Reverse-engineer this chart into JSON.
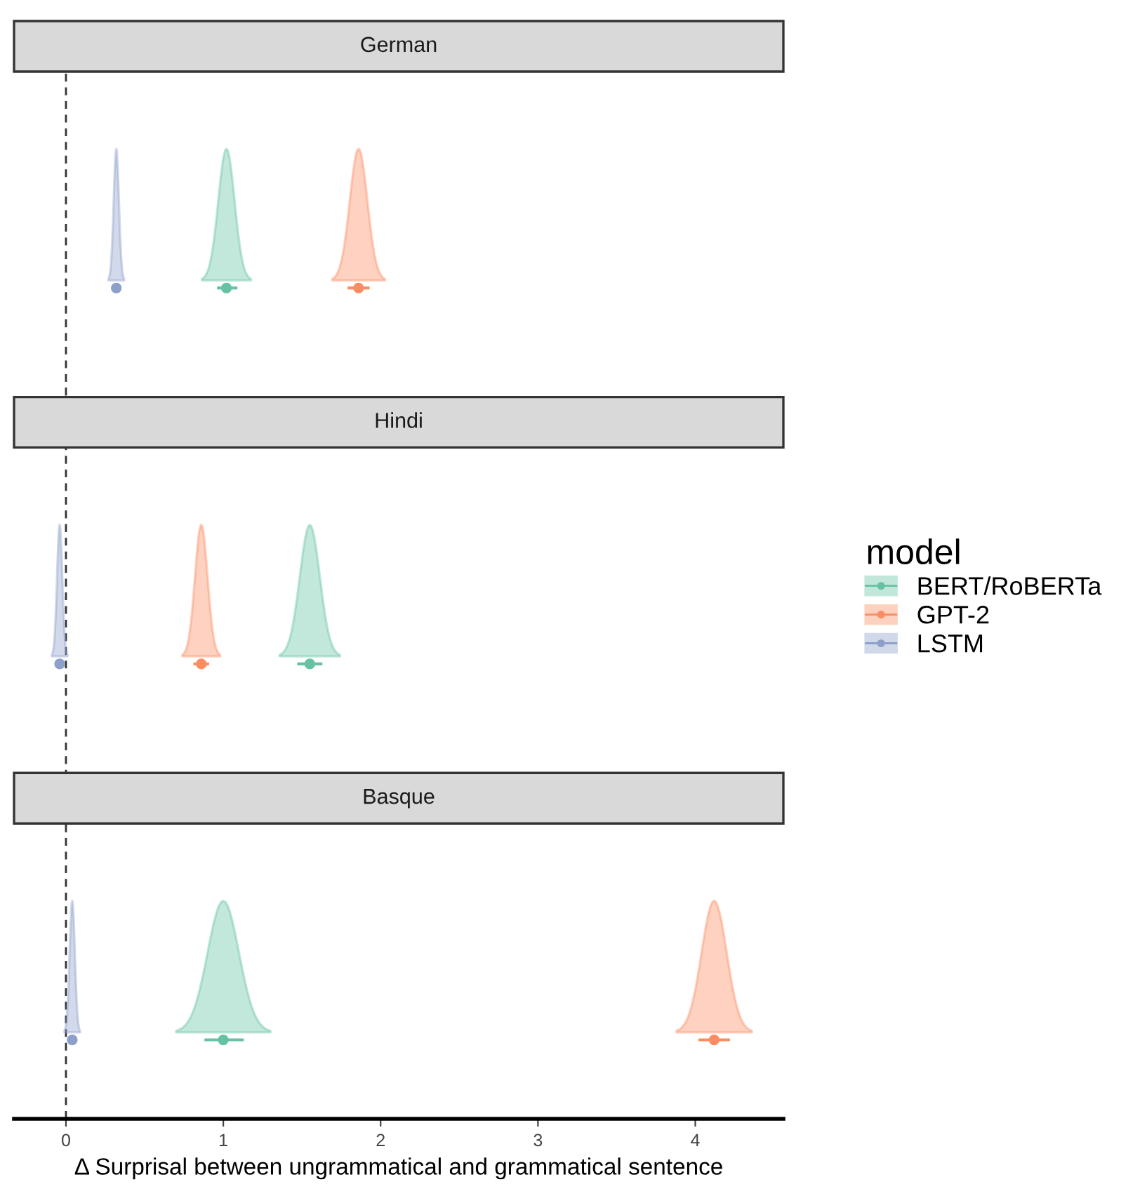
{
  "chart_data": {
    "type": "scatter",
    "orientation": "horizontal",
    "categories": [
      null,
      null,
      null
    ],
    "annotations": [
      "German",
      "Hindi",
      "Basque"
    ],
    "xlabel": "Δ Surprisal between ungrammatical and grammatical sentence",
    "xlim": [
      -0.33,
      4.56
    ],
    "xticks": [
      0,
      1,
      2,
      3,
      4
    ],
    "legend": "right",
    "legend_title": "model",
    "marker": "circle",
    "ref_lines": [
      {
        "axis": "x",
        "value": 0,
        "line_style": "dashed",
        "color": "#333333"
      }
    ],
    "series": [
      {
        "name": "BERT/RoBERTa",
        "color": "#66c2a5",
        "values": [
          1.02,
          1.55,
          1.0
        ],
        "errors": [
          [
            0.96,
            1.09
          ],
          [
            1.47,
            1.63
          ],
          [
            0.88,
            1.13
          ]
        ]
      },
      {
        "name": "GPT-2",
        "color": "#fc8d62",
        "values": [
          1.86,
          0.86,
          4.12
        ],
        "errors": [
          [
            1.79,
            1.93
          ],
          [
            0.81,
            0.91
          ],
          [
            4.02,
            4.22
          ]
        ]
      },
      {
        "name": "LSTM",
        "color": "#8da0cb",
        "values": [
          0.32,
          -0.04,
          0.04
        ],
        "errors": [
          null,
          null,
          null
        ]
      }
    ]
  }
}
